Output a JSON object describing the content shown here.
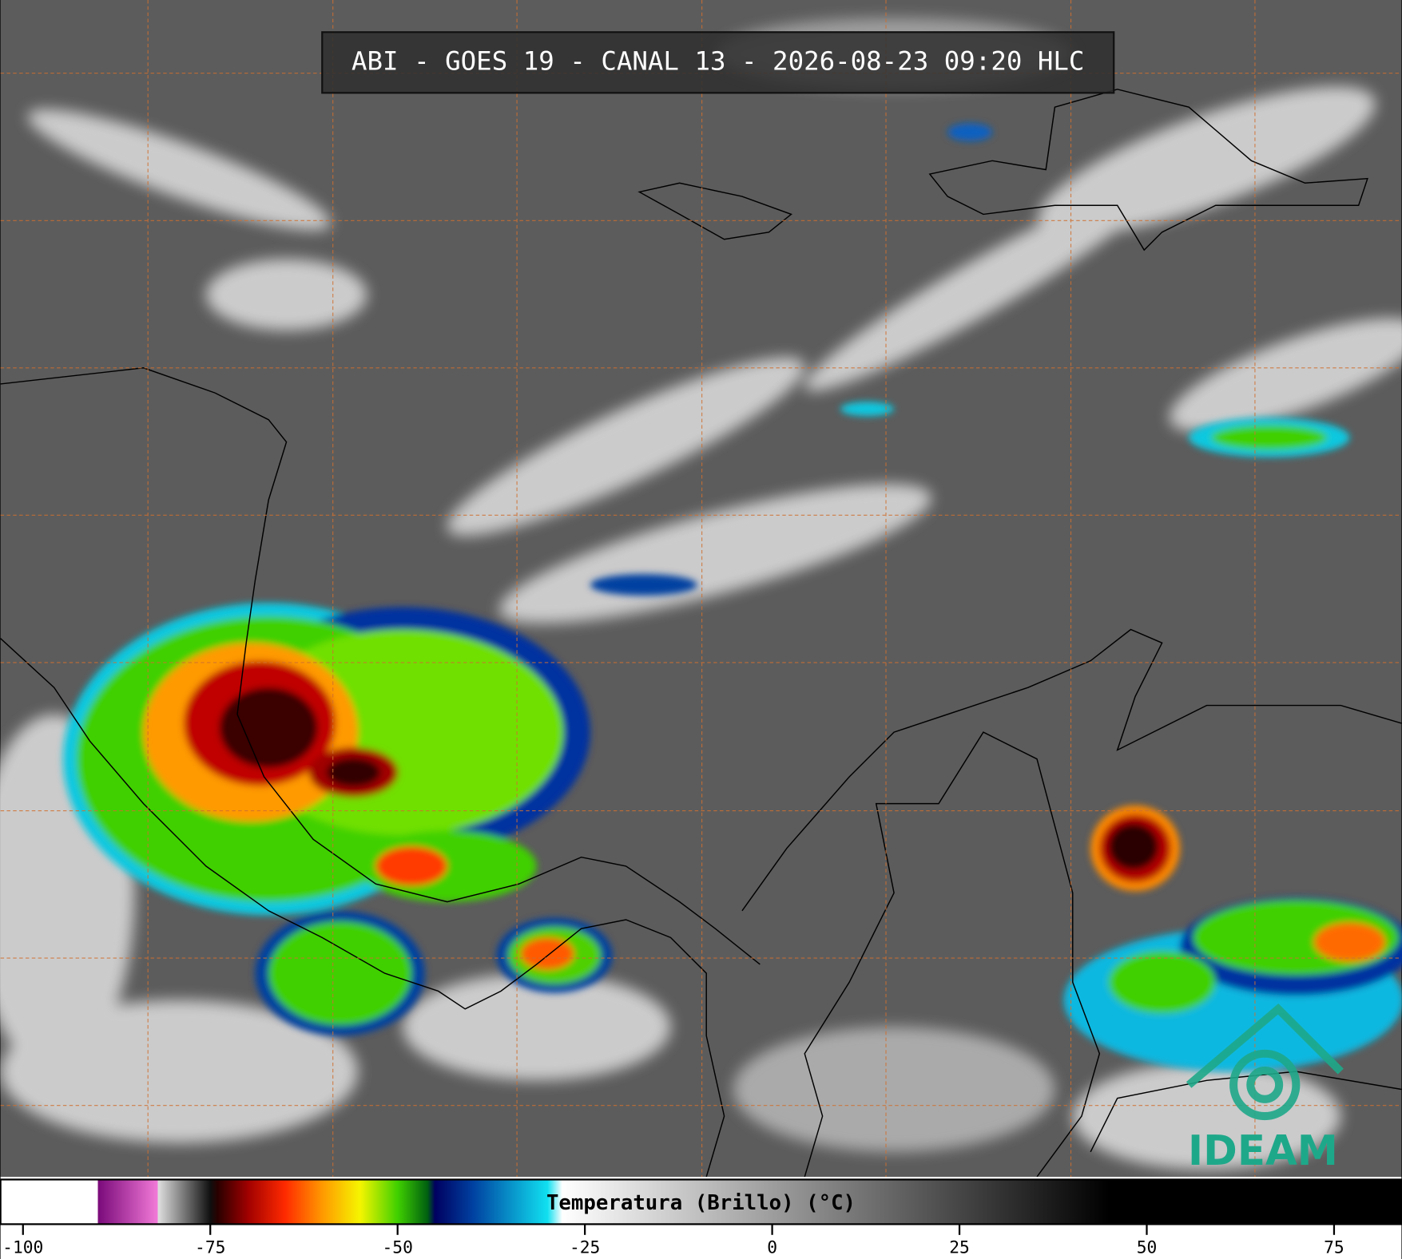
{
  "title": "ABI - GOES 19 - CANAL 13 - 2026-08-23 09:20 HLC",
  "logo": "IDEAM",
  "colorbar": {
    "label": "Temperatura (Brillo) (°C)",
    "xlim": [
      -103,
      84
    ],
    "xticks": [
      -100,
      -75,
      -50,
      -25,
      0,
      25,
      50,
      75
    ],
    "colormap": [
      [
        -103,
        "#ffffff"
      ],
      [
        -90,
        "#ffffff"
      ],
      [
        -90,
        "#7a0a7a"
      ],
      [
        -82,
        "#f27ad8"
      ],
      [
        -82,
        "#e0e0e0"
      ],
      [
        -75,
        "#101010"
      ],
      [
        -74,
        "#2a0000"
      ],
      [
        -70,
        "#a00000"
      ],
      [
        -65,
        "#ff2a00"
      ],
      [
        -60,
        "#ff9a00"
      ],
      [
        -55,
        "#f5f500"
      ],
      [
        -50,
        "#40d000"
      ],
      [
        -46,
        "#006010"
      ],
      [
        -45,
        "#000060"
      ],
      [
        -40,
        "#0040a0"
      ],
      [
        -30,
        "#10e0f0"
      ],
      [
        -28,
        "#ffffff"
      ],
      [
        45,
        "#000000"
      ],
      [
        84,
        "#000000"
      ]
    ]
  }
}
